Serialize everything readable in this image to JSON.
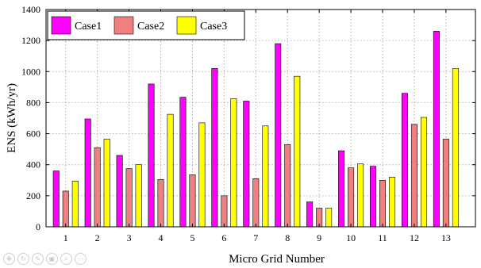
{
  "chart_data": {
    "type": "bar",
    "categories": [
      "1",
      "2",
      "3",
      "4",
      "5",
      "6",
      "7",
      "8",
      "9",
      "10",
      "11",
      "12",
      "13"
    ],
    "series": [
      {
        "name": "Case1",
        "color": "#ff00ff",
        "values": [
          360,
          695,
          460,
          920,
          835,
          1020,
          810,
          1180,
          160,
          490,
          390,
          860,
          1260
        ]
      },
      {
        "name": "Case2",
        "color": "#f08080",
        "values": [
          230,
          510,
          375,
          305,
          335,
          200,
          310,
          530,
          120,
          380,
          300,
          660,
          565
        ]
      },
      {
        "name": "Case3",
        "color": "#ffff00",
        "values": [
          295,
          565,
          400,
          725,
          670,
          825,
          650,
          970,
          120,
          405,
          320,
          705,
          1020
        ]
      }
    ],
    "xlabel": "Micro Grid Number",
    "ylabel": "ENS (kWh/yr)",
    "ylim": [
      0,
      1400
    ],
    "yticks": [
      0,
      200,
      400,
      600,
      800,
      1000,
      1200,
      1400
    ],
    "grid": true,
    "legend": "top-left"
  },
  "toolbar": {
    "icons": [
      "pan-icon",
      "rotate-icon",
      "edit-icon",
      "image-icon",
      "zoom-icon",
      "more-icon"
    ]
  }
}
